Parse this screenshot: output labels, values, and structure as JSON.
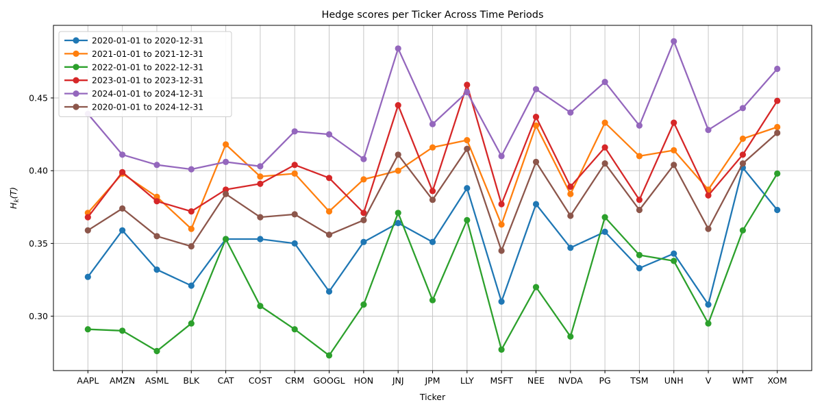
{
  "chart_data": {
    "type": "line",
    "title": "Hedge scores per Ticker Across Time Periods",
    "xlabel": "Ticker",
    "ylabel": "H_k(T)",
    "ylabel_parts": {
      "main": "H",
      "sub": "k",
      "rest": "(T)"
    },
    "categories": [
      "AAPL",
      "AMZN",
      "ASML",
      "BLK",
      "CAT",
      "COST",
      "CRM",
      "GOOGL",
      "HON",
      "JNJ",
      "JPM",
      "LLY",
      "MSFT",
      "NEE",
      "NVDA",
      "PG",
      "TSM",
      "UNH",
      "V",
      "WMT",
      "XOM"
    ],
    "series": [
      {
        "name": "2020-01-01 to 2020-12-31",
        "color": "#1f77b4",
        "values": [
          0.327,
          0.359,
          0.332,
          0.321,
          0.353,
          0.353,
          0.35,
          0.317,
          0.351,
          0.364,
          0.351,
          0.388,
          0.31,
          0.377,
          0.347,
          0.358,
          0.333,
          0.343,
          0.308,
          0.402,
          0.373
        ]
      },
      {
        "name": "2021-01-01 to 2021-12-31",
        "color": "#ff7f0e",
        "values": [
          0.371,
          0.398,
          0.382,
          0.36,
          0.418,
          0.396,
          0.398,
          0.372,
          0.394,
          0.4,
          0.416,
          0.421,
          0.363,
          0.431,
          0.384,
          0.433,
          0.41,
          0.414,
          0.387,
          0.422,
          0.43
        ]
      },
      {
        "name": "2022-01-01 to 2022-12-31",
        "color": "#2ca02c",
        "values": [
          0.291,
          0.29,
          0.276,
          0.295,
          0.353,
          0.307,
          0.291,
          0.273,
          0.308,
          0.371,
          0.311,
          0.366,
          0.277,
          0.32,
          0.286,
          0.368,
          0.342,
          0.338,
          0.295,
          0.359,
          0.398
        ]
      },
      {
        "name": "2023-01-01 to 2023-12-31",
        "color": "#d62728",
        "values": [
          0.368,
          0.399,
          0.379,
          0.372,
          0.387,
          0.391,
          0.404,
          0.395,
          0.371,
          0.445,
          0.386,
          0.459,
          0.377,
          0.437,
          0.389,
          0.416,
          0.38,
          0.433,
          0.383,
          0.411,
          0.448
        ]
      },
      {
        "name": "2024-01-01 to 2024-12-31",
        "color": "#9467bd",
        "values": [
          0.439,
          0.411,
          0.404,
          0.401,
          0.406,
          0.403,
          0.427,
          0.425,
          0.408,
          0.484,
          0.432,
          0.454,
          0.41,
          0.456,
          0.44,
          0.461,
          0.431,
          0.489,
          0.428,
          0.443,
          0.47
        ]
      },
      {
        "name": "2020-01-01 to 2024-12-31",
        "color": "#8c564b",
        "values": [
          0.359,
          0.374,
          0.355,
          0.348,
          0.384,
          0.368,
          0.37,
          0.356,
          0.366,
          0.411,
          0.38,
          0.415,
          0.345,
          0.406,
          0.369,
          0.405,
          0.373,
          0.404,
          0.36,
          0.405,
          0.426
        ]
      }
    ],
    "y_ticks": [
      0.3,
      0.35,
      0.4,
      0.45
    ],
    "ylim": [
      0.2626,
      0.4999
    ],
    "grid": true,
    "grid_color": "#c6c6c6",
    "axis_color": "#000000",
    "background": "#ffffff",
    "legend_position": "upper left",
    "marker": "o"
  }
}
